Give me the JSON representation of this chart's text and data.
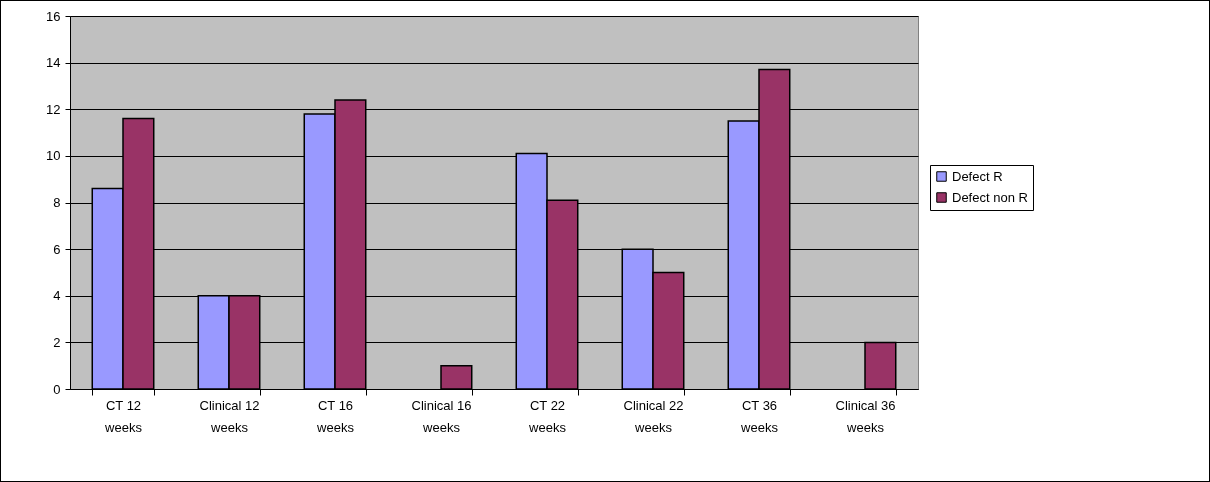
{
  "chart_data": {
    "type": "bar",
    "categories": [
      "CT 12 weeks",
      "Clinical 12 weeks",
      "CT 16 weeks",
      "Clinical 16 weeks",
      "CT 22 weeks",
      "Clinical 22 weeks",
      "CT 36 weeks",
      "Clinical 36 weeks"
    ],
    "series": [
      {
        "name": "Defect R",
        "color": "#9999ff",
        "values": [
          8.6,
          4,
          11.8,
          null,
          10.1,
          6,
          11.5,
          null
        ]
      },
      {
        "name": "Defect non R",
        "color": "#993366",
        "values": [
          11.6,
          4,
          12.4,
          1,
          8.1,
          5,
          13.7,
          2
        ]
      }
    ],
    "ylim": [
      0,
      16
    ],
    "yticks": [
      0,
      2,
      4,
      6,
      8,
      10,
      12,
      14,
      16
    ],
    "grid": "y",
    "legend": "right"
  }
}
